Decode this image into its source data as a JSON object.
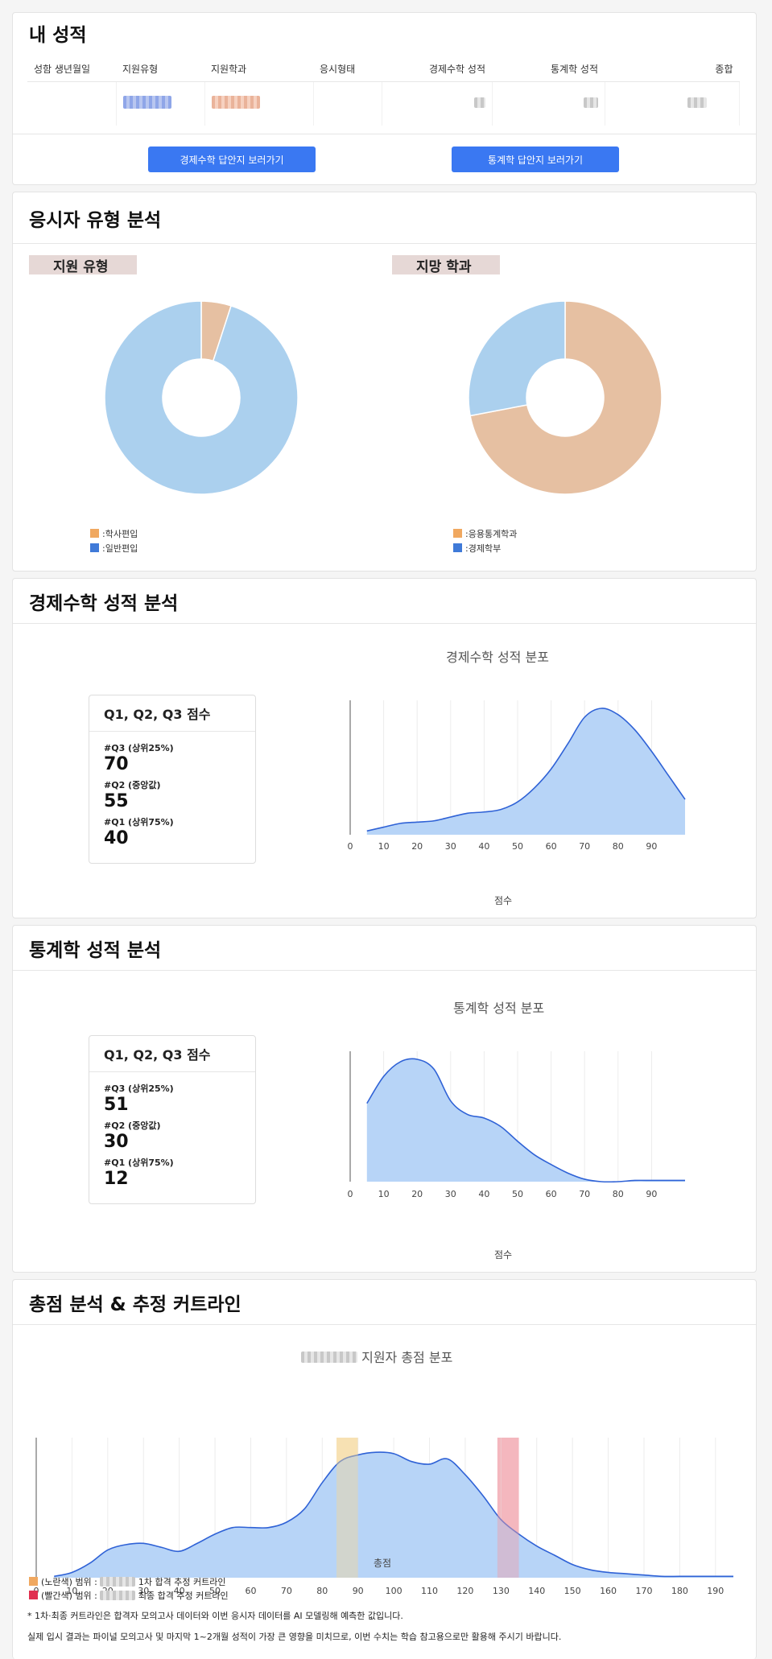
{
  "my_score": {
    "title": "내 성적",
    "headers": [
      "성함 생년월일",
      "지원유형",
      "지원학과",
      "응시형태",
      "경제수학 성적",
      "통계학 성적",
      "종합"
    ],
    "btn_econ": "경제수학 답안지 보러가기",
    "btn_stat": "통계학 답안지 보러가기"
  },
  "applicant": {
    "title": "응시자 유형 분석",
    "left_label": "지원 유형",
    "right_label": "지망 학과",
    "left_legend": [
      ":학사편입",
      ":일반편입"
    ],
    "right_legend": [
      ":응용통계학과",
      ":경제학부"
    ],
    "colors": {
      "orange": "#f0a860",
      "blue": "#3f7ad8",
      "pie_blue": "#abd0ee",
      "pie_peach": "#e6c0a2"
    }
  },
  "econ": {
    "title": "경제수학 성적 분석",
    "box_title": "Q1, Q2, Q3 점수",
    "q3_label": "#Q3 (상위25%)",
    "q3": "70",
    "q2_label": "#Q2 (중앙값)",
    "q2": "55",
    "q1_label": "#Q1 (상위75%)",
    "q1": "40",
    "chart_title": "경제수학 성적 분포",
    "xlabel": "점수"
  },
  "stat": {
    "title": "통계학 성적 분석",
    "box_title": "Q1, Q2, Q3 점수",
    "q3_label": "#Q3 (상위25%)",
    "q3": "51",
    "q2_label": "#Q2 (중앙값)",
    "q2": "30",
    "q1_label": "#Q1 (상위75%)",
    "q1": "12",
    "chart_title": "통계학 성적 분포",
    "xlabel": "점수"
  },
  "total": {
    "title": "총점 분석 & 추정 커트라인",
    "chart_title_suffix": "지원자 총점 분포",
    "xlabel": "총점",
    "legend_yellow_prefix": "(노란색) 범위 :",
    "legend_yellow_suffix": "1차 합격 추정 커트라인",
    "legend_red_prefix": "(빨간색) 범위 :",
    "legend_red_suffix": "최종 합격 추정 커트라인",
    "note1": "* 1차·최종 커트라인은 합격자 모의고사 데이터와 이번 응시자 데이터를 AI 모델링해 예측한 값입니다.",
    "note2": "실제 입시 결과는 파이널 모의고사 및 마지막 1~2개월 성적이 가장 큰 영향을 미치므로, 이번 수치는 학습 참고용으로만 활용해 주시기 바랍니다."
  },
  "chart_data": [
    {
      "type": "pie",
      "categories": [
        "학사편입",
        "일반편입"
      ],
      "values": [
        5,
        95
      ],
      "colors": [
        "#e6c0a2",
        "#abd0ee"
      ]
    },
    {
      "type": "pie",
      "categories": [
        "응용통계학과",
        "경제학부"
      ],
      "values": [
        72,
        28
      ],
      "colors": [
        "#e6c0a2",
        "#abd0ee"
      ]
    },
    {
      "type": "area",
      "title": "경제수학 성적 분포",
      "xlabel": "점수",
      "xticks": [
        0,
        10,
        20,
        30,
        40,
        50,
        60,
        70,
        80,
        90
      ],
      "xlim": [
        0,
        100
      ],
      "x": [
        5,
        10,
        15,
        20,
        25,
        30,
        35,
        40,
        45,
        50,
        55,
        60,
        65,
        70,
        75,
        80,
        85,
        90,
        95,
        100
      ],
      "y": [
        0.03,
        0.06,
        0.09,
        0.1,
        0.11,
        0.14,
        0.17,
        0.18,
        0.2,
        0.26,
        0.37,
        0.52,
        0.72,
        0.93,
        1.0,
        0.95,
        0.83,
        0.66,
        0.47,
        0.28
      ]
    },
    {
      "type": "area",
      "title": "통계학 성적 분포",
      "xlabel": "점수",
      "xticks": [
        0,
        10,
        20,
        30,
        40,
        50,
        60,
        70,
        80,
        90
      ],
      "xlim": [
        0,
        100
      ],
      "x": [
        5,
        10,
        15,
        20,
        25,
        30,
        35,
        40,
        45,
        50,
        55,
        60,
        65,
        70,
        75,
        80,
        85,
        90,
        95,
        100
      ],
      "y": [
        0.64,
        0.86,
        0.98,
        1.0,
        0.92,
        0.66,
        0.55,
        0.52,
        0.45,
        0.33,
        0.22,
        0.14,
        0.07,
        0.02,
        0.0,
        0.0,
        0.01,
        0.01,
        0.01,
        0.01
      ]
    },
    {
      "type": "area",
      "xlabel": "총점",
      "xticks": [
        0,
        10,
        20,
        30,
        40,
        50,
        60,
        70,
        80,
        90,
        100,
        110,
        120,
        130,
        140,
        150,
        160,
        170,
        180,
        190
      ],
      "xlim": [
        0,
        195
      ],
      "x": [
        5,
        10,
        15,
        20,
        25,
        30,
        35,
        40,
        45,
        50,
        55,
        60,
        65,
        70,
        75,
        80,
        85,
        90,
        95,
        100,
        105,
        110,
        115,
        120,
        125,
        130,
        135,
        140,
        145,
        150,
        155,
        160,
        165,
        170,
        175,
        180,
        185,
        190,
        195
      ],
      "y": [
        0.01,
        0.04,
        0.11,
        0.21,
        0.25,
        0.26,
        0.23,
        0.2,
        0.26,
        0.33,
        0.38,
        0.38,
        0.38,
        0.42,
        0.52,
        0.72,
        0.88,
        0.93,
        0.95,
        0.94,
        0.88,
        0.86,
        0.9,
        0.78,
        0.62,
        0.44,
        0.33,
        0.24,
        0.17,
        0.1,
        0.06,
        0.04,
        0.03,
        0.02,
        0.01,
        0.01,
        0.01,
        0.01,
        0.01
      ],
      "bands": [
        {
          "name": "1차 합격 추정 커트라인",
          "range": [
            84,
            90
          ],
          "color": "#f4d79a"
        },
        {
          "name": "최종 합격 추정 커트라인",
          "range": [
            129,
            135
          ],
          "color": "#f0a0a8"
        }
      ]
    }
  ]
}
